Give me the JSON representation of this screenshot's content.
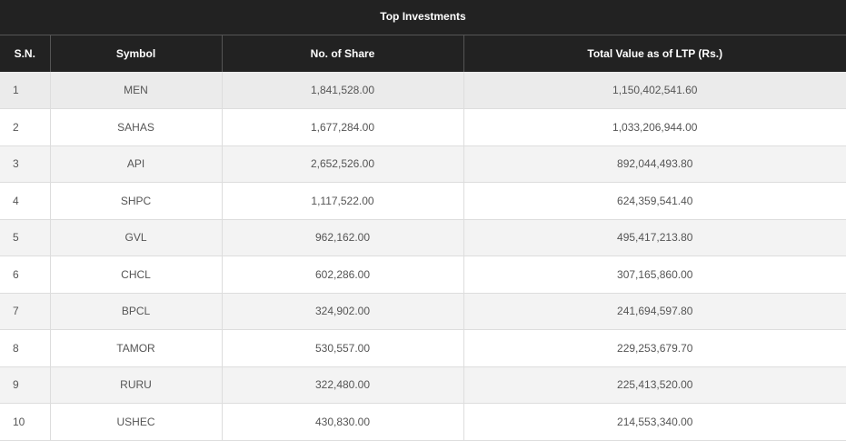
{
  "title": "Top Investments",
  "table": {
    "headers": [
      "S.N.",
      "Symbol",
      "No. of Share",
      "Total Value as of LTP (Rs.)"
    ],
    "rows": [
      [
        "1",
        "MEN",
        "1,841,528.00",
        "1,150,402,541.60"
      ],
      [
        "2",
        "SAHAS",
        "1,677,284.00",
        "1,033,206,944.00"
      ],
      [
        "3",
        "API",
        "2,652,526.00",
        "892,044,493.80"
      ],
      [
        "4",
        "SHPC",
        "1,117,522.00",
        "624,359,541.40"
      ],
      [
        "5",
        "GVL",
        "962,162.00",
        "495,417,213.80"
      ],
      [
        "6",
        "CHCL",
        "602,286.00",
        "307,165,860.00"
      ],
      [
        "7",
        "BPCL",
        "324,902.00",
        "241,694,597.80"
      ],
      [
        "8",
        "TAMOR",
        "530,557.00",
        "229,253,679.70"
      ],
      [
        "9",
        "RURU",
        "322,480.00",
        "225,413,520.00"
      ],
      [
        "10",
        "USHEC",
        "430,830.00",
        "214,553,340.00"
      ]
    ]
  }
}
